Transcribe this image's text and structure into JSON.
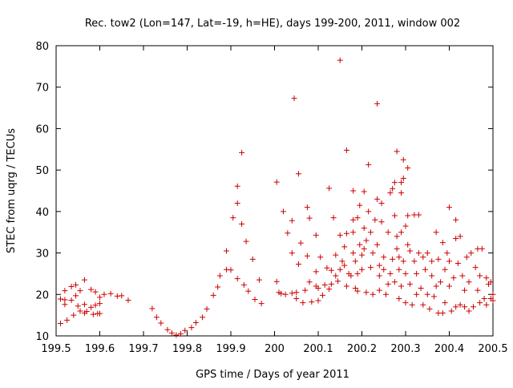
{
  "chart_data": {
    "type": "scatter",
    "title": "Rec. tow2 (Lon=147, Lat=-19, h=HE), days 199-200, 2011, window 002",
    "xlabel": "GPS time / Days of year 2011",
    "ylabel": "STEC from uqrg / TECUs",
    "xlim": [
      199.5,
      200.5
    ],
    "ylim": [
      10,
      80
    ],
    "xticks": [
      199.5,
      199.6,
      199.7,
      199.8,
      199.9,
      200,
      200.1,
      200.2,
      200.3,
      200.4,
      200.5
    ],
    "xtick_labels": [
      "199.5",
      "199.6",
      "199.7",
      "199.8",
      "199.9",
      "200",
      "200.1",
      "200.2",
      "200.3",
      "200.4",
      "200.5"
    ],
    "yticks": [
      10,
      20,
      30,
      40,
      50,
      60,
      70,
      80
    ],
    "ytick_labels": [
      "10",
      "20",
      "30",
      "40",
      "50",
      "60",
      "70",
      "80"
    ],
    "grid": false,
    "legend": "none",
    "marker": "+",
    "color": "#cc0000",
    "points": [
      [
        199.51,
        18.9
      ],
      [
        199.51,
        13.0
      ],
      [
        199.52,
        20.9
      ],
      [
        199.52,
        18.7
      ],
      [
        199.52,
        17.6
      ],
      [
        199.525,
        13.8
      ],
      [
        199.535,
        21.9
      ],
      [
        199.535,
        18.6
      ],
      [
        199.54,
        15.0
      ],
      [
        199.545,
        22.3
      ],
      [
        199.545,
        19.7
      ],
      [
        199.55,
        17.2
      ],
      [
        199.555,
        20.9
      ],
      [
        199.555,
        16.0
      ],
      [
        199.565,
        23.5
      ],
      [
        199.565,
        17.6
      ],
      [
        199.565,
        15.5
      ],
      [
        199.57,
        15.9
      ],
      [
        199.58,
        21.2
      ],
      [
        199.58,
        16.9
      ],
      [
        199.585,
        15.2
      ],
      [
        199.59,
        20.6
      ],
      [
        199.59,
        17.4
      ],
      [
        199.595,
        15.4
      ],
      [
        199.6,
        17.8
      ],
      [
        199.6,
        19.3
      ],
      [
        199.6,
        15.4
      ],
      [
        199.61,
        20.0
      ],
      [
        199.625,
        20.2
      ],
      [
        199.64,
        19.6
      ],
      [
        199.65,
        19.7
      ],
      [
        199.665,
        18.6
      ],
      [
        199.72,
        16.6
      ],
      [
        199.73,
        14.5
      ],
      [
        199.74,
        13.1
      ],
      [
        199.755,
        11.5
      ],
      [
        199.765,
        10.7
      ],
      [
        199.775,
        10.2
      ],
      [
        199.785,
        10.5
      ],
      [
        199.795,
        11.3
      ],
      [
        199.81,
        12.0
      ],
      [
        199.82,
        13.2
      ],
      [
        199.835,
        14.5
      ],
      [
        199.845,
        16.5
      ],
      [
        199.86,
        19.8
      ],
      [
        199.87,
        21.8
      ],
      [
        199.875,
        24.5
      ],
      [
        199.89,
        26.0
      ],
      [
        199.89,
        30.5
      ],
      [
        199.9,
        25.9
      ],
      [
        199.905,
        38.5
      ],
      [
        199.915,
        42.0
      ],
      [
        199.915,
        46.1
      ],
      [
        199.925,
        54.2
      ],
      [
        199.925,
        37.0
      ],
      [
        199.915,
        23.8
      ],
      [
        199.93,
        22.3
      ],
      [
        199.935,
        32.8
      ],
      [
        199.94,
        20.8
      ],
      [
        199.95,
        28.5
      ],
      [
        199.955,
        18.8
      ],
      [
        199.965,
        23.5
      ],
      [
        199.97,
        17.8
      ],
      [
        200.005,
        47.1
      ],
      [
        200.005,
        23.1
      ],
      [
        200.01,
        20.5
      ],
      [
        200.02,
        40.0
      ],
      [
        200.015,
        20.2
      ],
      [
        200.025,
        20.0
      ],
      [
        200.03,
        34.8
      ],
      [
        200.04,
        30.0
      ],
      [
        200.04,
        20.3
      ],
      [
        200.04,
        37.8
      ],
      [
        200.045,
        67.3
      ],
      [
        200.05,
        19.0
      ],
      [
        200.05,
        20.5
      ],
      [
        200.055,
        49.1
      ],
      [
        200.055,
        27.3
      ],
      [
        200.06,
        32.4
      ],
      [
        200.065,
        18.0
      ],
      [
        200.07,
        21.0
      ],
      [
        200.075,
        41.0
      ],
      [
        200.075,
        29.3
      ],
      [
        200.08,
        38.4
      ],
      [
        200.08,
        23.0
      ],
      [
        200.085,
        18.2
      ],
      [
        200.095,
        34.3
      ],
      [
        200.095,
        22.0
      ],
      [
        200.095,
        25.5
      ],
      [
        200.1,
        18.5
      ],
      [
        200.1,
        21.5
      ],
      [
        200.105,
        29.0
      ],
      [
        200.11,
        19.8
      ],
      [
        200.115,
        22.3
      ],
      [
        200.12,
        26.4
      ],
      [
        200.125,
        45.6
      ],
      [
        200.125,
        21.3
      ],
      [
        200.13,
        25.8
      ],
      [
        200.13,
        22.5
      ],
      [
        200.135,
        38.5
      ],
      [
        200.14,
        29.5
      ],
      [
        200.14,
        24.5
      ],
      [
        200.145,
        23.2
      ],
      [
        200.15,
        76.5
      ],
      [
        200.15,
        34.3
      ],
      [
        200.15,
        26.0
      ],
      [
        200.155,
        28.0
      ],
      [
        200.16,
        27.0
      ],
      [
        200.16,
        31.5
      ],
      [
        200.165,
        54.8
      ],
      [
        200.165,
        34.7
      ],
      [
        200.165,
        22.0
      ],
      [
        200.17,
        25.0
      ],
      [
        200.175,
        24.5
      ],
      [
        200.18,
        45.0
      ],
      [
        200.18,
        38.0
      ],
      [
        200.18,
        35.0
      ],
      [
        200.18,
        30.0
      ],
      [
        200.185,
        28.0
      ],
      [
        200.185,
        21.5
      ],
      [
        200.19,
        20.8
      ],
      [
        200.19,
        38.5
      ],
      [
        200.19,
        25.0
      ],
      [
        200.195,
        41.5
      ],
      [
        200.195,
        32.0
      ],
      [
        200.2,
        29.5
      ],
      [
        200.2,
        26.0
      ],
      [
        200.205,
        44.8
      ],
      [
        200.205,
        36.0
      ],
      [
        200.205,
        31.0
      ],
      [
        200.21,
        20.5
      ],
      [
        200.21,
        33.0
      ],
      [
        200.215,
        51.3
      ],
      [
        200.215,
        40.0
      ],
      [
        200.22,
        35.0
      ],
      [
        200.22,
        26.5
      ],
      [
        200.225,
        20.0
      ],
      [
        200.225,
        30.0
      ],
      [
        200.23,
        38.0
      ],
      [
        200.235,
        66.0
      ],
      [
        200.235,
        43.0
      ],
      [
        200.235,
        32.0
      ],
      [
        200.24,
        27.0
      ],
      [
        200.24,
        24.5
      ],
      [
        200.24,
        21.0
      ],
      [
        200.245,
        42.0
      ],
      [
        200.245,
        37.5
      ],
      [
        200.25,
        29.0
      ],
      [
        200.25,
        26.0
      ],
      [
        200.255,
        20.0
      ],
      [
        200.26,
        35.0
      ],
      [
        200.26,
        22.5
      ],
      [
        200.265,
        44.5
      ],
      [
        200.265,
        25.0
      ],
      [
        200.27,
        45.5
      ],
      [
        200.27,
        28.5
      ],
      [
        200.275,
        47.0
      ],
      [
        200.275,
        39.0
      ],
      [
        200.275,
        23.0
      ],
      [
        200.28,
        54.5
      ],
      [
        200.28,
        34.0
      ],
      [
        200.28,
        31.0
      ],
      [
        200.285,
        29.0
      ],
      [
        200.285,
        19.0
      ],
      [
        200.285,
        26.0
      ],
      [
        200.29,
        47.0
      ],
      [
        200.29,
        44.5
      ],
      [
        200.29,
        35.0
      ],
      [
        200.29,
        22.0
      ],
      [
        200.295,
        52.5
      ],
      [
        200.295,
        48.0
      ],
      [
        200.295,
        28.0
      ],
      [
        200.3,
        36.5
      ],
      [
        200.3,
        25.0
      ],
      [
        200.3,
        18.0
      ],
      [
        200.305,
        50.5
      ],
      [
        200.305,
        39.0
      ],
      [
        200.305,
        32.0
      ],
      [
        200.31,
        30.5
      ],
      [
        200.31,
        22.5
      ],
      [
        200.315,
        17.5
      ],
      [
        200.32,
        39.2
      ],
      [
        200.32,
        28.0
      ],
      [
        200.325,
        25.0
      ],
      [
        200.325,
        20.0
      ],
      [
        200.33,
        30.0
      ],
      [
        200.33,
        39.2
      ],
      [
        200.335,
        21.5
      ],
      [
        200.34,
        29.0
      ],
      [
        200.34,
        17.5
      ],
      [
        200.345,
        26.0
      ],
      [
        200.35,
        30.0
      ],
      [
        200.35,
        20.0
      ],
      [
        200.355,
        16.5
      ],
      [
        200.36,
        24.5
      ],
      [
        200.36,
        28.0
      ],
      [
        200.365,
        19.5
      ],
      [
        200.37,
        22.0
      ],
      [
        200.37,
        35.0
      ],
      [
        200.375,
        15.5
      ],
      [
        200.375,
        28.5
      ],
      [
        200.38,
        23.0
      ],
      [
        200.385,
        32.5
      ],
      [
        200.385,
        15.5
      ],
      [
        200.39,
        18.0
      ],
      [
        200.39,
        26.0
      ],
      [
        200.395,
        30.0
      ],
      [
        200.4,
        41.0
      ],
      [
        200.4,
        28.0
      ],
      [
        200.4,
        22.0
      ],
      [
        200.405,
        16.0
      ],
      [
        200.41,
        24.0
      ],
      [
        200.415,
        38.0
      ],
      [
        200.415,
        33.5
      ],
      [
        200.415,
        17.0
      ],
      [
        200.42,
        27.5
      ],
      [
        200.425,
        34.0
      ],
      [
        200.425,
        17.5
      ],
      [
        200.43,
        24.5
      ],
      [
        200.435,
        21.0
      ],
      [
        200.435,
        17.0
      ],
      [
        200.44,
        29.0
      ],
      [
        200.445,
        23.0
      ],
      [
        200.445,
        16.0
      ],
      [
        200.45,
        30.0
      ],
      [
        200.455,
        17.0
      ],
      [
        200.46,
        26.5
      ],
      [
        200.465,
        21.0
      ],
      [
        200.465,
        31.0
      ],
      [
        200.47,
        18.0
      ],
      [
        200.47,
        24.5
      ],
      [
        200.475,
        31.0
      ],
      [
        200.48,
        19.0
      ],
      [
        200.485,
        24.0
      ],
      [
        200.485,
        17.5
      ],
      [
        200.49,
        22.5
      ],
      [
        200.495,
        19.0
      ],
      [
        200.495,
        23.0
      ],
      [
        200.5,
        20.0
      ],
      [
        200.5,
        18.5
      ]
    ]
  }
}
